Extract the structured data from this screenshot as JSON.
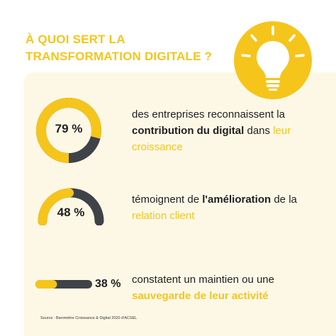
{
  "header": {
    "title_line1": "À QUOI SERT LA",
    "title_line2": "TRANSFORMATION DIGITALE ?"
  },
  "colors": {
    "accent": "#f5c51c",
    "dark": "#3f4348",
    "card_bg": "#fdf8e6"
  },
  "icons": {
    "bulb": "light-bulb-icon"
  },
  "stats": [
    {
      "value": "79 %",
      "fraction": 0.79,
      "text_pre": "des entreprises reconnaissent la",
      "text_bold": "contribution du digital",
      "text_mid": " dans ",
      "text_hl": "leur croissance"
    },
    {
      "value": "48 %",
      "fraction": 0.48,
      "text_pre": "témoignent de ",
      "text_bold": "l'amélioration",
      "text_mid": " de la ",
      "text_hl": "relation client"
    },
    {
      "value": "38 %",
      "fraction": 0.38,
      "text_pre": "constatent un maintien ou une",
      "text_hl": "sauvegarde de leur activité"
    }
  ],
  "source": "Source : Baromètre Croissance & Digital 2020 d'ACSEL"
}
